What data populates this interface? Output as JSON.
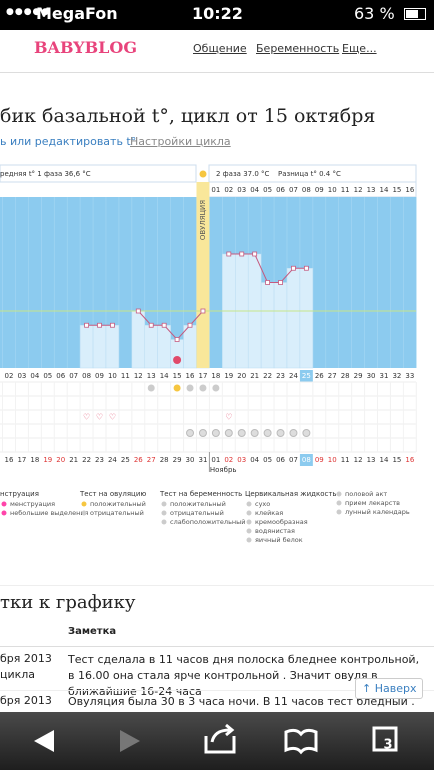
{
  "status": {
    "carrier": "MegaFon",
    "time": "10:22",
    "battery": "63 %"
  },
  "header": {
    "logo": "BABYBLOG",
    "nav": [
      "Общение",
      "Беременность",
      "Еще..."
    ]
  },
  "title": "бик базальной t°, цикл от 15 октября",
  "links": [
    "ь или редактировать t°",
    "Настройки цикла"
  ],
  "chart": {
    "phase1": "редняя t° 1 фаза 36,6 °C",
    "phase2": "2 фаза 37.0 °C",
    "diff": "Разница t° 0.4 °C",
    "ovulation": "ОВУЛЯЦИЯ",
    "days": [
      "02",
      "03",
      "04",
      "05",
      "06",
      "07",
      "08",
      "09",
      "10",
      "11",
      "12",
      "13",
      "14",
      "15",
      "16",
      "17",
      "18",
      "19",
      "20",
      "21",
      "22",
      "23",
      "24",
      "25",
      "26",
      "27",
      "28",
      "29",
      "30",
      "31",
      "32",
      "33"
    ],
    "phase2_days": [
      "01",
      "02",
      "03",
      "04",
      "05",
      "06",
      "07",
      "08",
      "09",
      "10",
      "11",
      "12",
      "13",
      "14",
      "15",
      "16"
    ],
    "temps": [
      null,
      null,
      null,
      null,
      null,
      null,
      36.6,
      36.6,
      36.6,
      null,
      36.7,
      36.6,
      36.6,
      36.5,
      36.6,
      36.7,
      null,
      37.1,
      37.1,
      37.1,
      36.9,
      36.9,
      37.0,
      37.0,
      null,
      null,
      null,
      null,
      null,
      null,
      null,
      null
    ],
    "ylim": [
      36.3,
      37.5
    ],
    "coverline": 36.7,
    "dates": [
      "16",
      "17",
      "18",
      "19",
      "20",
      "21",
      "22",
      "23",
      "24",
      "25",
      "26",
      "27",
      "28",
      "29",
      "30",
      "31",
      "01",
      "02",
      "03",
      "04",
      "05",
      "06",
      "07",
      "08",
      "09",
      "10",
      "11",
      "12",
      "13",
      "14",
      "15",
      "16"
    ],
    "month": "Ноябрь",
    "weekend": [
      3,
      4,
      10,
      11,
      17,
      18,
      24,
      25,
      31
    ],
    "today": 23,
    "ovulation_day": 15,
    "ovulation_positive": [
      13
    ],
    "ovulation_negative": [
      11,
      14,
      15,
      16
    ],
    "hearts": [
      6,
      7,
      8,
      17
    ],
    "pills": [
      14,
      15,
      16,
      17,
      18,
      19,
      20,
      21,
      22,
      23
    ],
    "moon": [
      13
    ]
  },
  "legend": [
    {
      "title": "нструация",
      "items": [
        "менструация",
        "небольшие выделения"
      ]
    },
    {
      "title": "Тест на овуляцию",
      "items": [
        "положительный",
        "отрицательный"
      ]
    },
    {
      "title": "Тест на беременность",
      "items": [
        "положительный",
        "отрицательный",
        "слабоположительный"
      ]
    },
    {
      "title": "Цервикальная жидкость",
      "items": [
        "сухо",
        "клейкая",
        "кремообразная",
        "водянистая",
        "яичный белок"
      ]
    },
    {
      "items": [
        "половой акт",
        "прием лекарств",
        "лунный календарь"
      ]
    }
  ],
  "notes": {
    "heading": "тки к графику",
    "column": "Заметка",
    "rows": [
      [
        "бря 2013",
        "цикла",
        "Тест сделала в 11 часов дня полоска бледнее контрольной, в 16.00 она стала ярче контрольной . Значит овуля в ближайшие 16-24 часа"
      ],
      [
        "бря 2013",
        "",
        "Овуляция была 30 в 3 часа ночи. В 11 часов тест бледный ."
      ]
    ]
  },
  "top_button": "↑ Наверх",
  "tabs": "3"
}
